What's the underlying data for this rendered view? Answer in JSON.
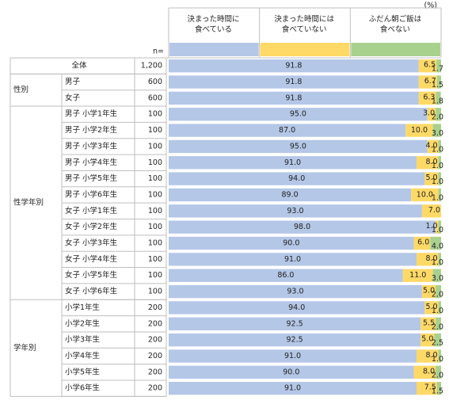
{
  "chart_data": {
    "type": "bar",
    "orientation": "horizontal",
    "stacked": true,
    "unit": "(%)",
    "n_label": "n=",
    "xlim": [
      0,
      100
    ],
    "sections": [
      {
        "name": null,
        "categories": [
          "全体"
        ],
        "n": [
          "1,200"
        ]
      },
      {
        "name": "性別",
        "categories": [
          "男子",
          "女子"
        ],
        "n": [
          "600",
          "600"
        ]
      },
      {
        "name": "性学年別",
        "categories": [
          "男子  小学1年生",
          "男子  小学2年生",
          "男子  小学3年生",
          "男子  小学4年生",
          "男子  小学5年生",
          "男子  小学6年生",
          "女子  小学1年生",
          "女子  小学2年生",
          "女子  小学3年生",
          "女子  小学4年生",
          "女子  小学5年生",
          "女子  小学6年生"
        ],
        "n": [
          "100",
          "100",
          "100",
          "100",
          "100",
          "100",
          "100",
          "100",
          "100",
          "100",
          "100",
          "100"
        ]
      },
      {
        "name": "学年別",
        "categories": [
          "小学1年生",
          "小学2年生",
          "小学3年生",
          "小学4年生",
          "小学5年生",
          "小学6年生"
        ],
        "n": [
          "200",
          "200",
          "200",
          "200",
          "200",
          "200"
        ]
      }
    ],
    "series": [
      {
        "name": "決まった時間に\n食べている",
        "color": "#b4c7e7",
        "values": [
          91.8,
          91.8,
          91.8,
          95,
          87,
          95,
          91,
          94,
          89,
          93,
          98,
          90,
          91,
          86,
          93,
          94,
          92.5,
          92.5,
          91,
          90,
          91
        ],
        "value_labels": [
          "91.8",
          "91.8",
          "91.8",
          "95.0",
          "87.0",
          "95.0",
          "91.0",
          "94.0",
          "89.0",
          "93.0",
          "98.0",
          "90.0",
          "91.0",
          "86.0",
          "93.0",
          "94.0",
          "92.5",
          "92.5",
          "91.0",
          "90.0",
          "91.0"
        ]
      },
      {
        "name": "決まった時間には\n食べていない",
        "color": "#ffd966",
        "values": [
          6.5,
          6.7,
          6.3,
          3,
          10,
          4,
          8,
          5,
          10,
          7,
          1,
          6,
          8,
          11,
          5,
          5,
          5.5,
          5,
          8,
          8,
          7.5
        ],
        "value_labels": [
          "6.5",
          "6.7",
          "6.3",
          "3.0",
          "10.0",
          "4.0",
          "8.0",
          "5.0",
          "10.0",
          "7.0",
          "1.0",
          "6.0",
          "8.0",
          "11.0",
          "5.0",
          "5.0",
          "5.5",
          "5.0",
          "8.0",
          "8.0",
          "7.5"
        ]
      },
      {
        "name": "ふだん朝ご飯は\n食べない",
        "color": "#a9d18e",
        "values": [
          1.7,
          1.5,
          1.8,
          2,
          3,
          1,
          1,
          1,
          1,
          null,
          1,
          4,
          1,
          3,
          2,
          1,
          2,
          2.5,
          1,
          2,
          1.5
        ],
        "value_labels": [
          "1.7",
          "1.5",
          "1.8",
          "2.0",
          "3.0",
          "1.0",
          "1.0",
          "1.0",
          "1.0",
          null,
          "1.0",
          "4.0",
          "1.0",
          "3.0",
          "2.0",
          "1.0",
          "2.0",
          "2.5",
          "1.0",
          "2.0",
          "1.5"
        ]
      }
    ]
  }
}
